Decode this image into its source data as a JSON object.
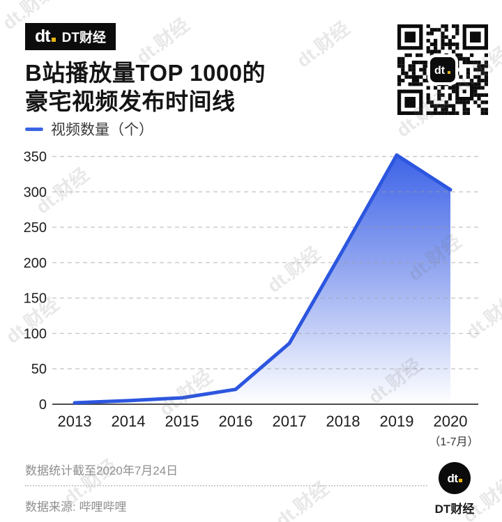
{
  "brand": {
    "mark": "dt",
    "name": "DT财经"
  },
  "title": {
    "line1": "B站播放量TOP 1000的",
    "line2": "豪宅视频发布时间线"
  },
  "legend": {
    "label": "视频数量（个）"
  },
  "chart_data": {
    "type": "area",
    "title": "B站播放量TOP 1000的豪宅视频发布时间线",
    "series_label": "视频数量（个）",
    "categories": [
      "2013",
      "2014",
      "2015",
      "2016",
      "2017",
      "2018",
      "2019",
      "2020"
    ],
    "values": [
      2,
      5,
      9,
      21,
      86,
      218,
      352,
      303
    ],
    "x_note": {
      "category": "2020",
      "text": "（1-7月）"
    },
    "yticks": [
      0,
      50,
      100,
      150,
      200,
      250,
      300,
      350
    ],
    "ylim": [
      0,
      350
    ],
    "grid": "horizontal-dashed",
    "legend_position": "top-left",
    "line_color": "#2C56DF",
    "fill_gradient": [
      "#3D63E7",
      "#9FB1F2",
      "#FFFFFF"
    ]
  },
  "footer": {
    "note": "数据统计截至2020年7月24日",
    "source": "数据来源: 哔哩哔哩"
  },
  "watermark": {
    "text": "dt.财经"
  }
}
